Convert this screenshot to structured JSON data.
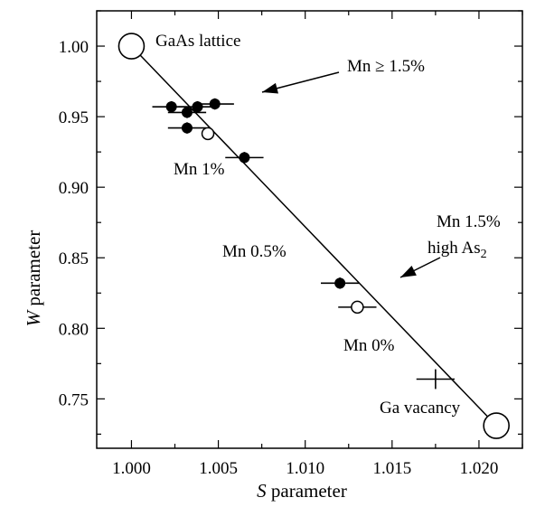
{
  "chart_data": {
    "type": "scatter",
    "xlabel": {
      "italic": "S",
      "rest": " parameter"
    },
    "ylabel": {
      "italic": "W",
      "rest": " parameter"
    },
    "xlim": [
      0.998,
      1.0225
    ],
    "ylim": [
      0.715,
      1.025
    ],
    "xticks": [
      1.0,
      1.005,
      1.01,
      1.015,
      1.02
    ],
    "yticks": [
      0.75,
      0.8,
      0.85,
      0.9,
      0.95,
      1.0
    ],
    "xtick_labels": [
      "1.000",
      "1.005",
      "1.010",
      "1.015",
      "1.020"
    ],
    "ytick_labels": [
      "0.75",
      "0.80",
      "0.85",
      "0.90",
      "0.95",
      "1.00"
    ],
    "grid": false,
    "reference_line": {
      "from": [
        1.0,
        1.0
      ],
      "to": [
        1.021,
        0.731
      ]
    },
    "endpoints": [
      {
        "x": 1.0,
        "y": 1.0
      },
      {
        "x": 1.021,
        "y": 0.731
      }
    ],
    "series": [
      {
        "marker": "filled-circle",
        "points": [
          {
            "x": 1.0023,
            "y": 0.957,
            "xerr": 0.0011,
            "yerr": 0.004
          },
          {
            "x": 1.0032,
            "y": 0.953,
            "xerr": 0.0011,
            "yerr": 0.004
          },
          {
            "x": 1.0038,
            "y": 0.957,
            "xerr": 0.0011,
            "yerr": 0.004
          },
          {
            "x": 1.0048,
            "y": 0.959,
            "xerr": 0.0011,
            "yerr": 0.004
          },
          {
            "x": 1.0032,
            "y": 0.942,
            "xerr": 0.0011,
            "yerr": 0.004
          },
          {
            "x": 1.0065,
            "y": 0.921,
            "xerr": 0.0011,
            "yerr": 0.004
          },
          {
            "x": 1.012,
            "y": 0.832,
            "xerr": 0.0011,
            "yerr": 0.004
          }
        ]
      },
      {
        "marker": "open-circle",
        "points": [
          {
            "x": 1.0044,
            "y": 0.938,
            "xerr": 0,
            "yerr": 0
          },
          {
            "x": 1.013,
            "y": 0.815,
            "xerr": 0.0011,
            "yerr": 0
          }
        ]
      },
      {
        "marker": "cross",
        "points": [
          {
            "x": 1.0175,
            "y": 0.764,
            "xerr": 0.0011,
            "yerr": 0.007
          }
        ]
      }
    ],
    "annotations": [
      {
        "id": "gaas",
        "text": "GaAs lattice"
      },
      {
        "id": "mn15",
        "text": "Mn ≥ 1.5%"
      },
      {
        "id": "mn1",
        "text": "Mn 1%"
      },
      {
        "id": "mn15high1",
        "text": "Mn 1.5%"
      },
      {
        "id": "mn15high2",
        "text": "high As",
        "sub": "2"
      },
      {
        "id": "mn05",
        "text": "Mn 0.5%"
      },
      {
        "id": "mn0",
        "text": "Mn 0%"
      },
      {
        "id": "gavac",
        "text": "Ga vacancy"
      }
    ]
  }
}
